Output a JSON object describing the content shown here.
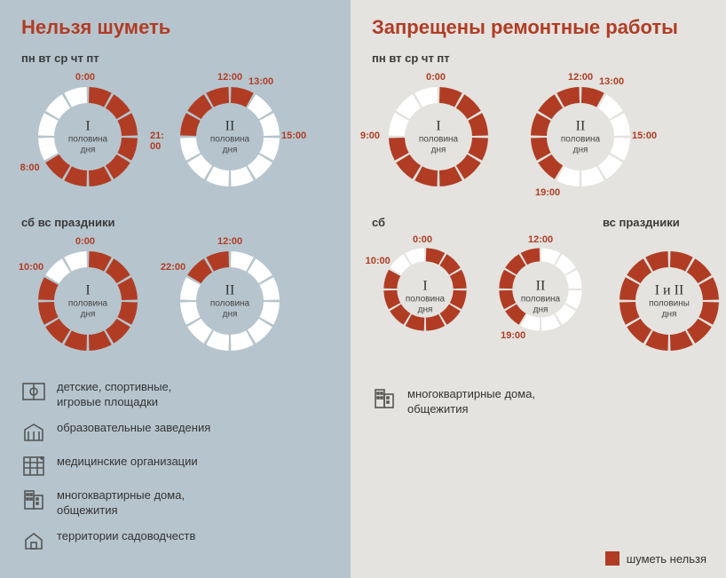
{
  "colors": {
    "filled": "#b13c24",
    "empty": "#ffffff",
    "title": "#b13c24",
    "text": "#333333",
    "panel_left_bg": "#b6c5cd",
    "panel_right_bg": "#e4e3df",
    "icon_stroke": "#555555"
  },
  "clock_style": {
    "outer_radius": 56,
    "inner_radius": 38,
    "segments": 12,
    "gap_deg": 3
  },
  "legend_label": "шуметь нельзя",
  "left": {
    "title": "Нельзя шуметь",
    "weekday_label": "пн  вт  ср  чт  пт",
    "weekend_label": "сб  вс  праздники",
    "weekday": {
      "first": {
        "roman": "I",
        "sub": "половина\nдня",
        "quiet_from": 0,
        "quiet_to": 8,
        "labels": [
          {
            "text": "0:00",
            "hour": 0,
            "r": 66
          },
          {
            "text": "8:00",
            "hour": 8,
            "r": 72
          }
        ]
      },
      "second": {
        "roman": "II",
        "sub": "половина\nдня",
        "quiet_from": 21,
        "quiet_to_next": 24,
        "quiet_from2": 12,
        "quiet_to2": 13,
        "labels": [
          {
            "text": "12:00",
            "hour": 12,
            "r": 66
          },
          {
            "text": "13:00",
            "hour": 13,
            "r": 70
          },
          {
            "text": "15:00",
            "hour": 15,
            "r": 72
          },
          {
            "text": "21:\n00",
            "hour": 21,
            "r": 76
          }
        ]
      }
    },
    "weekend": {
      "first": {
        "roman": "I",
        "sub": "половина\nдня",
        "quiet_from": 0,
        "quiet_to": 10,
        "labels": [
          {
            "text": "0:00",
            "hour": 0,
            "r": 66
          },
          {
            "text": "10:00",
            "hour": 10,
            "r": 74
          }
        ]
      },
      "second": {
        "roman": "II",
        "sub": "половина\nдня",
        "quiet_from": 22,
        "quiet_to_next": 24,
        "labels": [
          {
            "text": "12:00",
            "hour": 12,
            "r": 66
          },
          {
            "text": "22:00",
            "hour": 22,
            "r": 74
          }
        ]
      }
    },
    "locations": [
      {
        "icon": "playground",
        "text": "детские, спортивные,\nигровые площадки"
      },
      {
        "icon": "education",
        "text": "образовательные заведения"
      },
      {
        "icon": "medical",
        "text": "медицинские организации"
      },
      {
        "icon": "apartment",
        "text": "многоквартирные дома,\nобщежития"
      },
      {
        "icon": "garden",
        "text": "территории садоводчеств"
      }
    ]
  },
  "right": {
    "title": "Запрещены ремонтные работы",
    "weekday_label": "пн  вт  ср  чт  пт",
    "sat_label": "сб",
    "sunhol_label": "вс  праздники",
    "weekday": {
      "first": {
        "roman": "I",
        "sub": "половина\nдня",
        "quiet_from": 0,
        "quiet_to": 9,
        "labels": [
          {
            "text": "0:00",
            "hour": 0,
            "r": 66
          },
          {
            "text": "9:00",
            "hour": 9,
            "r": 74
          }
        ]
      },
      "second": {
        "roman": "II",
        "sub": "половина\nдня",
        "quiet_from": 19,
        "quiet_to_next": 24,
        "quiet_from2": 12,
        "quiet_to2": 13,
        "labels": [
          {
            "text": "12:00",
            "hour": 12,
            "r": 66
          },
          {
            "text": "13:00",
            "hour": 13,
            "r": 70
          },
          {
            "text": "15:00",
            "hour": 15,
            "r": 72
          },
          {
            "text": "19:00",
            "hour": 19,
            "r": 74
          }
        ]
      }
    },
    "sat": {
      "first": {
        "roman": "I",
        "sub": "половина\nдня",
        "quiet_from": 0,
        "quiet_to": 10,
        "labels": [
          {
            "text": "0:00",
            "hour": 0,
            "r": 66
          },
          {
            "text": "10:00",
            "hour": 10,
            "r": 74
          }
        ]
      },
      "second": {
        "roman": "II",
        "sub": "половина\nдня",
        "quiet_from": 19,
        "quiet_to_next": 24,
        "labels": [
          {
            "text": "12:00",
            "hour": 12,
            "r": 66
          },
          {
            "text": "19:00",
            "hour": 19,
            "r": 74
          }
        ]
      }
    },
    "sunhol": {
      "full": {
        "roman": "I и II",
        "sub": "половины\nдня",
        "quiet_from": 0,
        "quiet_to": 12,
        "labels": []
      }
    },
    "locations": [
      {
        "icon": "apartment",
        "text": "многоквартирные дома,\nобщежития"
      }
    ]
  }
}
